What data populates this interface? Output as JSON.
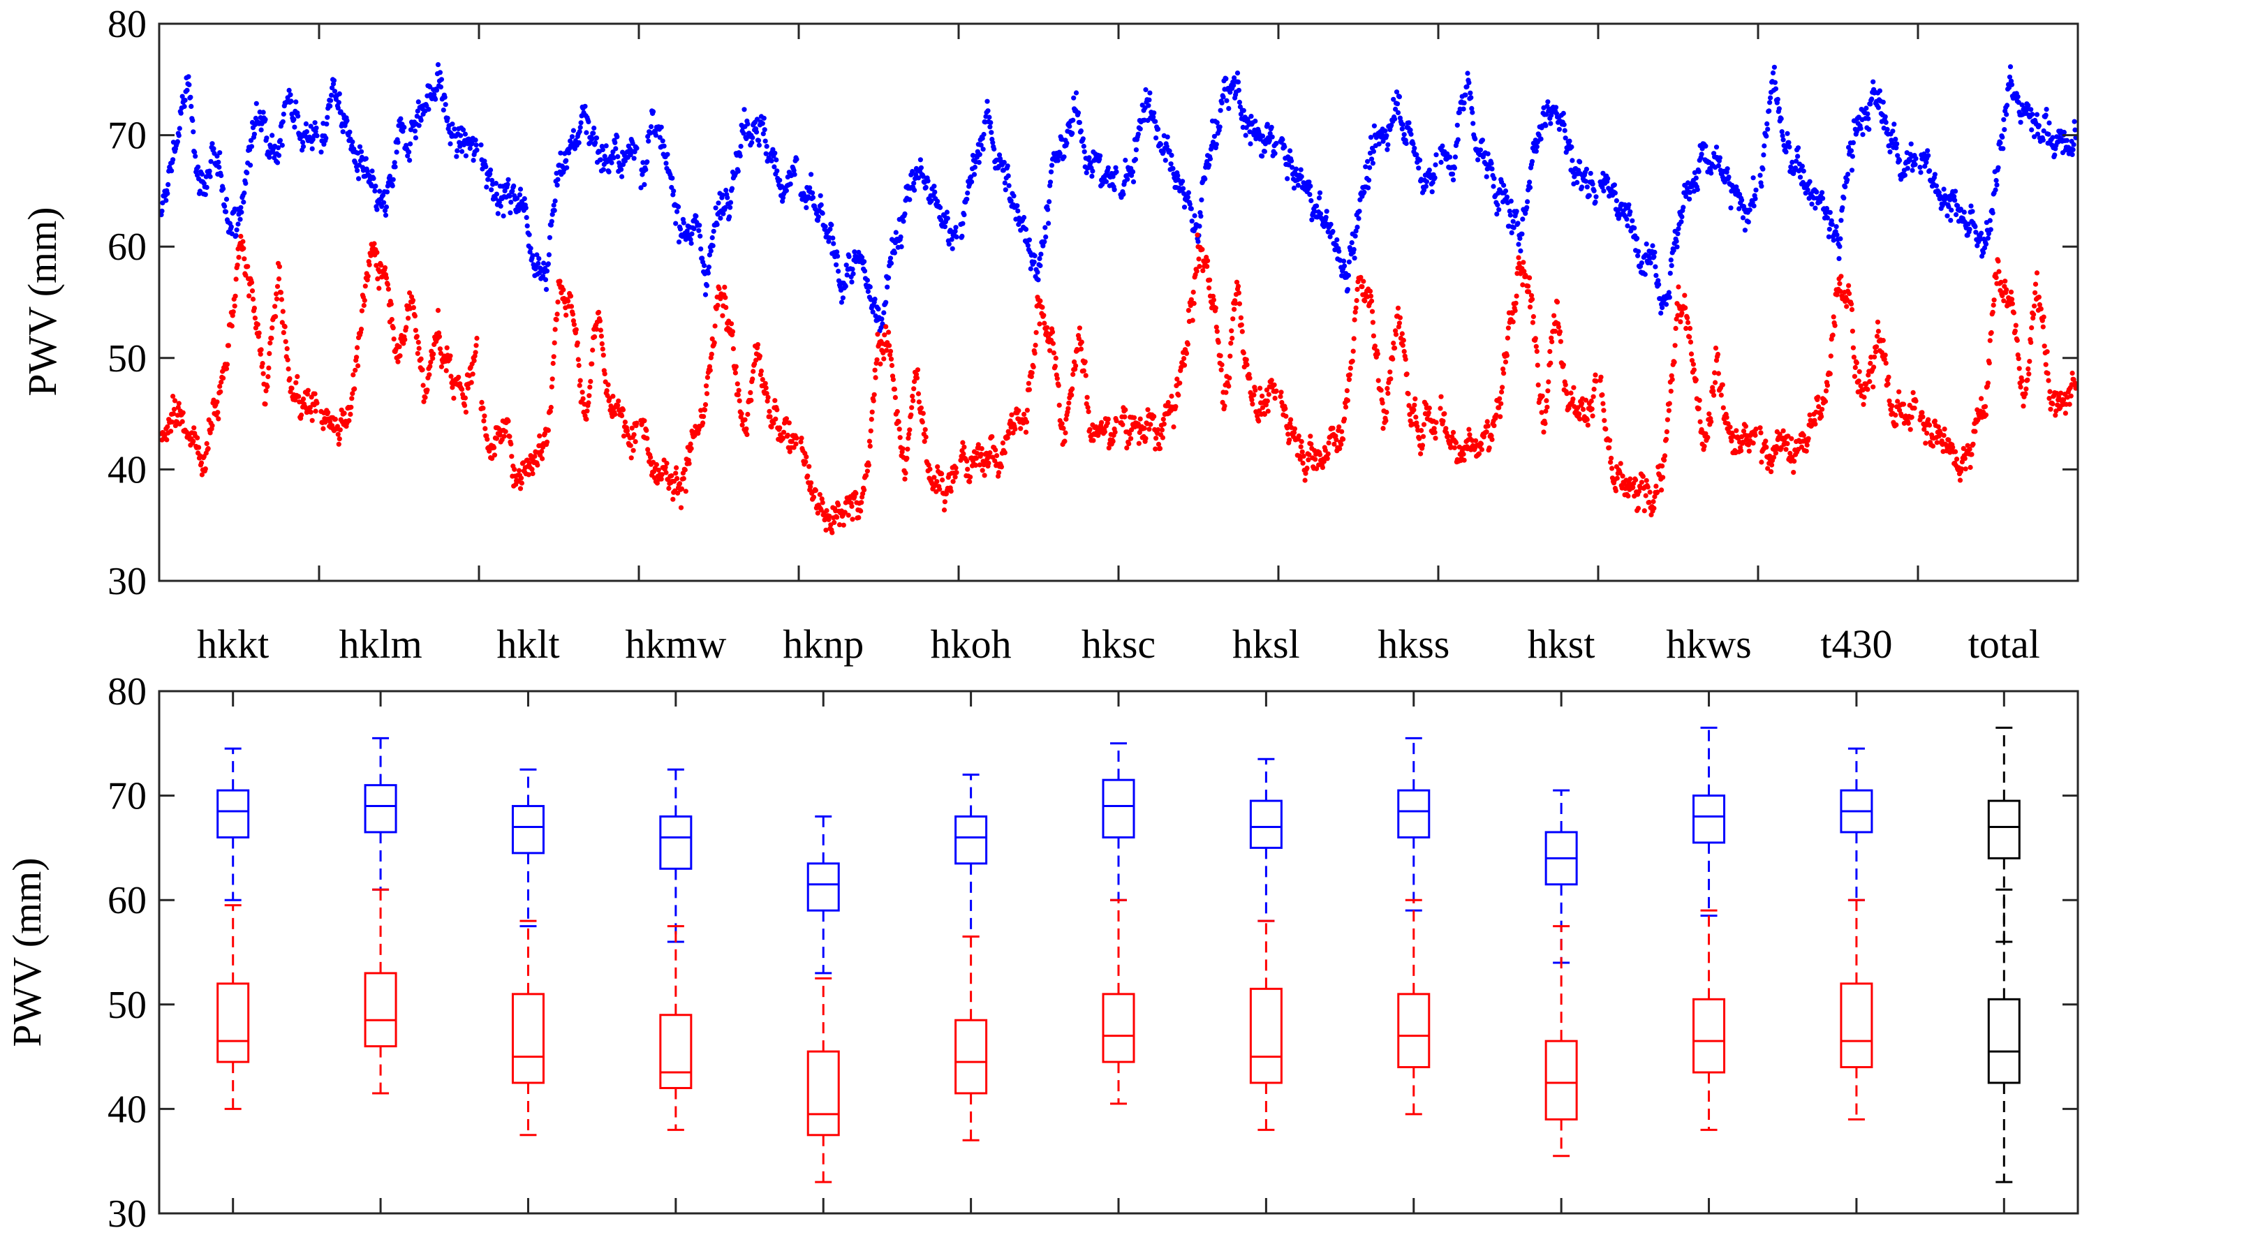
{
  "chart_data": [
    {
      "type": "scatter",
      "title": "",
      "ylabel": "PWV (mm)",
      "xlabel": "",
      "ylim": [
        30,
        80
      ],
      "yticks": [
        30,
        40,
        50,
        60,
        70,
        80
      ],
      "grid": false,
      "legend": "none",
      "stations": [
        "hkkt",
        "hklm",
        "hklt",
        "hkmw",
        "hknp",
        "hkoh",
        "hksc",
        "hksl",
        "hkss",
        "hkst",
        "hkws",
        "t430"
      ],
      "series": [
        {
          "name": "upper",
          "color": "#0000ff",
          "segments": [
            {
              "station": "hkkt",
              "profile": [
                62,
                69,
                74,
                66,
                67,
                64,
                62,
                70,
                72,
                69,
                74,
                70,
                70
              ]
            },
            {
              "station": "hklm",
              "profile": [
                68,
                75,
                70,
                67,
                64,
                63,
                69,
                71,
                73,
                75,
                70,
                69,
                68
              ]
            },
            {
              "station": "hklt",
              "profile": [
                69,
                66,
                64,
                65,
                60,
                58,
                67,
                69,
                72,
                69,
                68,
                67,
                70
              ]
            },
            {
              "station": "hkmw",
              "profile": [
                67,
                71,
                66,
                63,
                62,
                58,
                63,
                67,
                71,
                72,
                67,
                66,
                67
              ]
            },
            {
              "station": "hknp",
              "profile": [
                65,
                63,
                61,
                57,
                58,
                57,
                53,
                60,
                63,
                67,
                64,
                62,
                62
              ]
            },
            {
              "station": "hkoh",
              "profile": [
                62,
                66,
                72,
                67,
                64,
                62,
                58,
                66,
                69,
                72,
                68,
                66,
                66
              ]
            },
            {
              "station": "hksc",
              "profile": [
                65,
                68,
                74,
                70,
                66,
                64,
                62,
                70,
                73,
                74,
                70,
                69,
                70
              ]
            },
            {
              "station": "hksl",
              "profile": [
                69,
                66,
                65,
                63,
                61,
                57,
                64,
                67,
                70,
                74,
                69,
                66,
                68
              ]
            },
            {
              "station": "hkss",
              "profile": [
                68,
                67,
                75,
                69,
                66,
                64,
                60,
                68,
                72,
                73,
                68,
                66,
                66
              ]
            },
            {
              "station": "hkst",
              "profile": [
                66,
                65,
                62,
                61,
                60,
                55,
                62,
                66,
                68,
                67,
                65,
                63,
                65
              ]
            },
            {
              "station": "hkws",
              "profile": [
                66,
                75,
                68,
                67,
                65,
                63,
                60,
                69,
                72,
                73,
                70,
                68,
                68
              ]
            },
            {
              "station": "t430",
              "profile": [
                67,
                66,
                65,
                63,
                61,
                59,
                69,
                74,
                72,
                72,
                70,
                69,
                69
              ]
            }
          ]
        },
        {
          "name": "lower",
          "color": "#ff0000",
          "segments": [
            {
              "station": "hkkt",
              "profile": [
                43,
                45,
                44,
                41,
                45,
                50,
                59,
                56,
                46,
                57,
                47,
                46,
                46
              ]
            },
            {
              "station": "hklm",
              "profile": [
                45,
                44,
                45,
                52,
                60,
                58,
                50,
                56,
                47,
                52,
                48,
                47,
                51
              ]
            },
            {
              "station": "hklt",
              "profile": [
                46,
                42,
                43,
                40,
                41,
                43,
                57,
                55,
                44,
                54,
                45,
                44,
                45
              ]
            },
            {
              "station": "hkmw",
              "profile": [
                44,
                41,
                40,
                39,
                42,
                45,
                56,
                51,
                44,
                51,
                44,
                43,
                44
              ]
            },
            {
              "station": "hknp",
              "profile": [
                43,
                38,
                36,
                36,
                37,
                38,
                52,
                50,
                40,
                48,
                40,
                39,
                40
              ]
            },
            {
              "station": "hkoh",
              "profile": [
                41,
                40,
                42,
                41,
                44,
                45,
                55,
                52,
                43,
                53,
                44,
                43,
                44
              ]
            },
            {
              "station": "hksc",
              "profile": [
                45,
                44,
                44,
                43,
                45,
                50,
                60,
                57,
                46,
                56,
                47,
                46,
                47
              ]
            },
            {
              "station": "hksl",
              "profile": [
                46,
                43,
                42,
                41,
                43,
                44,
                57,
                55,
                44,
                55,
                45,
                44,
                45
              ]
            },
            {
              "station": "hkss",
              "profile": [
                45,
                42,
                43,
                42,
                44,
                48,
                59,
                55,
                45,
                55,
                46,
                45,
                48
              ]
            },
            {
              "station": "hkst",
              "profile": [
                48,
                38,
                38,
                37,
                38,
                40,
                55,
                52,
                43,
                50,
                43,
                42,
                43
              ]
            },
            {
              "station": "hkws",
              "profile": [
                43,
                42,
                42,
                41,
                44,
                46,
                58,
                55,
                45,
                53,
                46,
                45,
                46
              ]
            },
            {
              "station": "t430",
              "profile": [
                44,
                43,
                43,
                41,
                43,
                46,
                58,
                55,
                46,
                56,
                47,
                46,
                47
              ]
            }
          ]
        }
      ]
    },
    {
      "type": "box",
      "title": "",
      "ylabel": "PWV (mm)",
      "xlabel": "",
      "ylim": [
        30,
        80
      ],
      "yticks": [
        30,
        40,
        50,
        60,
        70,
        80
      ],
      "grid": false,
      "legend": "none",
      "categories": [
        "hkkt",
        "hklm",
        "hklt",
        "hkmw",
        "hknp",
        "hkoh",
        "hksc",
        "hksl",
        "hkss",
        "hkst",
        "hkws",
        "t430",
        "total"
      ],
      "series": [
        {
          "name": "upper",
          "color": "#0000ff",
          "boxes": [
            {
              "category": "hkkt",
              "min": 60,
              "q1": 66,
              "median": 68.5,
              "q3": 70.5,
              "max": 74.5
            },
            {
              "category": "hklm",
              "min": 61,
              "q1": 66.5,
              "median": 69,
              "q3": 71,
              "max": 75.5
            },
            {
              "category": "hklt",
              "min": 57.5,
              "q1": 64.5,
              "median": 67,
              "q3": 69,
              "max": 72.5
            },
            {
              "category": "hkmw",
              "min": 56,
              "q1": 63,
              "median": 66,
              "q3": 68,
              "max": 72.5
            },
            {
              "category": "hknp",
              "min": 53,
              "q1": 59,
              "median": 61.5,
              "q3": 63.5,
              "max": 68
            },
            {
              "category": "hkoh",
              "min": 56.5,
              "q1": 63.5,
              "median": 66,
              "q3": 68,
              "max": 72
            },
            {
              "category": "hksc",
              "min": 60,
              "q1": 66,
              "median": 69,
              "q3": 71.5,
              "max": 75
            },
            {
              "category": "hksl",
              "min": 58,
              "q1": 65,
              "median": 67,
              "q3": 69.5,
              "max": 73.5
            },
            {
              "category": "hkss",
              "min": 59,
              "q1": 66,
              "median": 68.5,
              "q3": 70.5,
              "max": 75.5
            },
            {
              "category": "hkst",
              "min": 54,
              "q1": 61.5,
              "median": 64,
              "q3": 66.5,
              "max": 70.5
            },
            {
              "category": "hkws",
              "min": 58.5,
              "q1": 65.5,
              "median": 68,
              "q3": 70,
              "max": 76.5
            },
            {
              "category": "t430",
              "min": 60,
              "q1": 66.5,
              "median": 68.5,
              "q3": 70.5,
              "max": 74.5
            }
          ]
        },
        {
          "name": "lower",
          "color": "#ff0000",
          "boxes": [
            {
              "category": "hkkt",
              "min": 40,
              "q1": 44.5,
              "median": 46.5,
              "q3": 52,
              "max": 59.5
            },
            {
              "category": "hklm",
              "min": 41.5,
              "q1": 46,
              "median": 48.5,
              "q3": 53,
              "max": 61
            },
            {
              "category": "hklt",
              "min": 37.5,
              "q1": 42.5,
              "median": 45,
              "q3": 51,
              "max": 58
            },
            {
              "category": "hkmw",
              "min": 38,
              "q1": 42,
              "median": 43.5,
              "q3": 49,
              "max": 57.5
            },
            {
              "category": "hknp",
              "min": 33,
              "q1": 37.5,
              "median": 39.5,
              "q3": 45.5,
              "max": 52.5
            },
            {
              "category": "hkoh",
              "min": 37,
              "q1": 41.5,
              "median": 44.5,
              "q3": 48.5,
              "max": 56.5
            },
            {
              "category": "hksc",
              "min": 40.5,
              "q1": 44.5,
              "median": 47,
              "q3": 51,
              "max": 60
            },
            {
              "category": "hksl",
              "min": 38,
              "q1": 42.5,
              "median": 45,
              "q3": 51.5,
              "max": 58
            },
            {
              "category": "hkss",
              "min": 39.5,
              "q1": 44,
              "median": 47,
              "q3": 51,
              "max": 60
            },
            {
              "category": "hkst",
              "min": 35.5,
              "q1": 39,
              "median": 42.5,
              "q3": 46.5,
              "max": 57.5
            },
            {
              "category": "hkws",
              "min": 38,
              "q1": 43.5,
              "median": 46.5,
              "q3": 50.5,
              "max": 59
            },
            {
              "category": "t430",
              "min": 39,
              "q1": 44,
              "median": 46.5,
              "q3": 52,
              "max": 60
            }
          ]
        },
        {
          "name": "total",
          "color": "#000000",
          "boxes": [
            {
              "category": "total",
              "min": 56,
              "q1": 64,
              "median": 67,
              "q3": 69.5,
              "max": 76.5
            },
            {
              "category": "total",
              "min": 33,
              "q1": 42.5,
              "median": 45.5,
              "q3": 50.5,
              "max": 61
            }
          ]
        }
      ]
    }
  ]
}
